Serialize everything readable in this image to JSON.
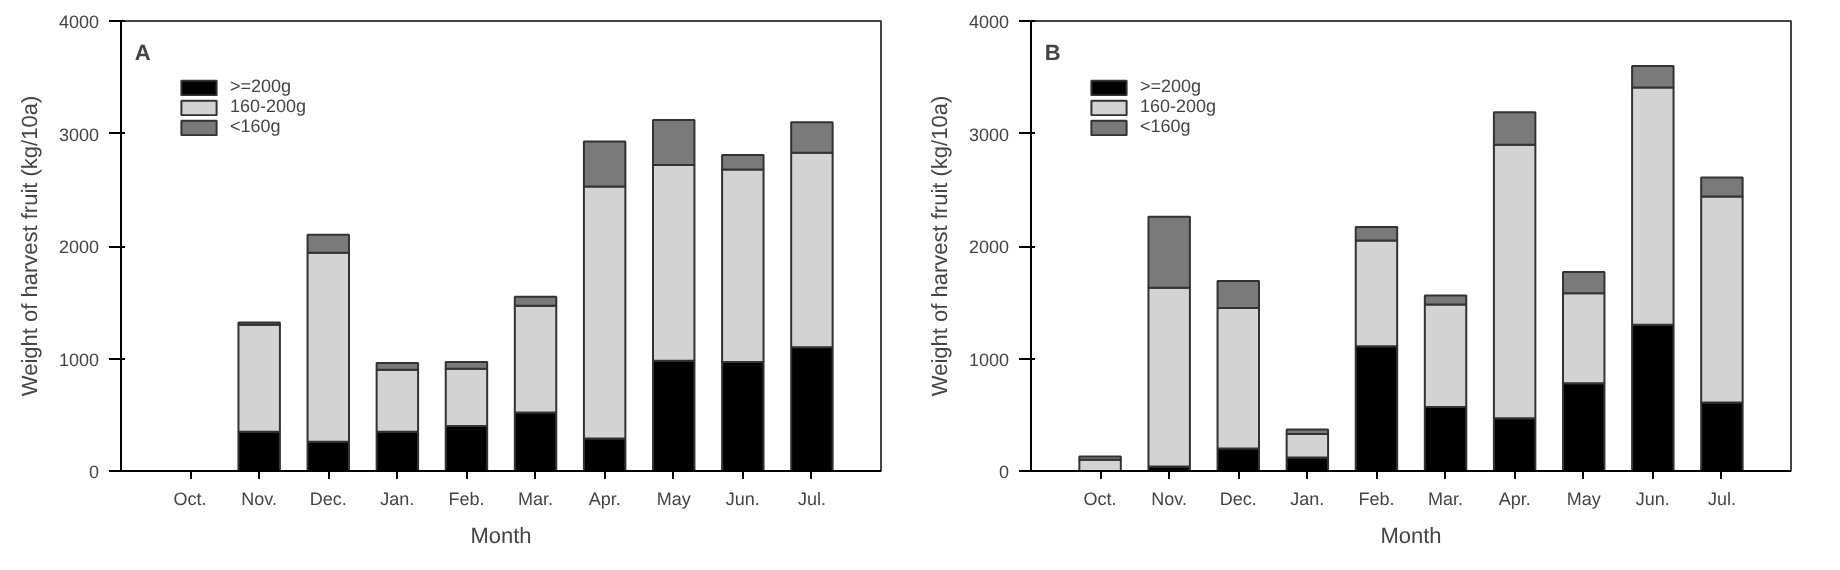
{
  "chart_data": [
    {
      "type": "bar",
      "stacked": true,
      "annotations": [
        "A"
      ],
      "xlabel": "Month",
      "ylabel": "Weight of harvest fruit (kg/10a)",
      "categories": [
        "Oct.",
        "Nov.",
        "Dec.",
        "Jan.",
        "Feb.",
        "Mar.",
        "Apr.",
        "May",
        "Jun.",
        "Jul."
      ],
      "ylim": [
        0,
        4000
      ],
      "yticks": [
        0,
        1000,
        2000,
        3000,
        4000
      ],
      "grid": false,
      "legend": "top left",
      "series": [
        {
          "name": ">=200g",
          "color": "#000000",
          "values": [
            0,
            350,
            260,
            350,
            400,
            520,
            290,
            980,
            970,
            1100
          ]
        },
        {
          "name": "160-200g",
          "color": "#d3d3d3",
          "values": [
            0,
            950,
            1680,
            550,
            510,
            950,
            2240,
            1740,
            1710,
            1730
          ]
        },
        {
          "name": "<160g",
          "color": "#7a7a7a",
          "values": [
            0,
            20,
            160,
            60,
            60,
            80,
            400,
            400,
            130,
            270
          ]
        }
      ]
    },
    {
      "type": "bar",
      "stacked": true,
      "annotations": [
        "B"
      ],
      "xlabel": "Month",
      "ylabel": "Weight of harvest fruit (kg/10a)",
      "categories": [
        "Oct.",
        "Nov.",
        "Dec.",
        "Jan.",
        "Feb.",
        "Mar.",
        "Apr.",
        "May",
        "Jun.",
        "Jul."
      ],
      "ylim": [
        0,
        4000
      ],
      "yticks": [
        0,
        1000,
        2000,
        3000,
        4000
      ],
      "grid": false,
      "legend": "top left",
      "series": [
        {
          "name": ">=200g",
          "color": "#000000",
          "values": [
            0,
            40,
            200,
            120,
            1110,
            570,
            470,
            780,
            1300,
            610
          ]
        },
        {
          "name": "160-200g",
          "color": "#d3d3d3",
          "values": [
            100,
            1590,
            1250,
            210,
            940,
            910,
            2430,
            800,
            2110,
            1830
          ]
        },
        {
          "name": "<160g",
          "color": "#7a7a7a",
          "values": [
            30,
            630,
            240,
            40,
            120,
            80,
            290,
            190,
            190,
            170
          ]
        }
      ]
    }
  ]
}
